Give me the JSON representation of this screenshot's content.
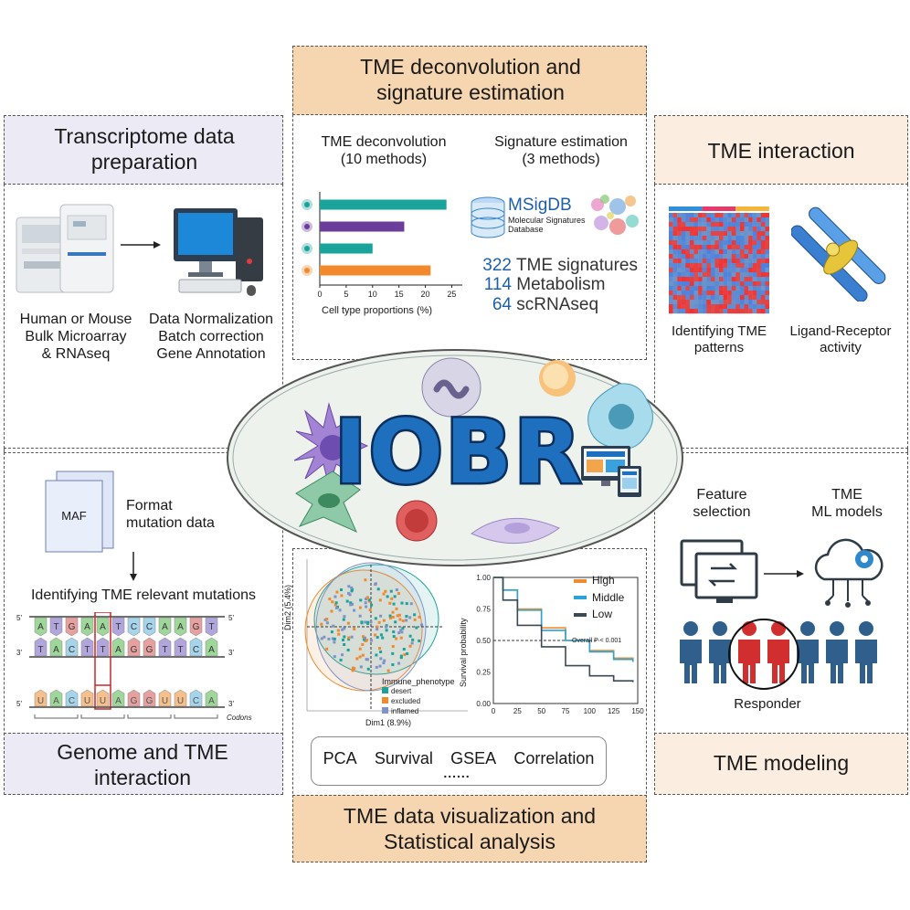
{
  "panels": {
    "transcriptome": {
      "title": "Transcriptome data preparation",
      "left_caption": [
        "Human or Mouse",
        "Bulk Microarray",
        "& RNAseq"
      ],
      "right_caption": [
        "Data Normalization",
        "Batch correction",
        "Gene Annotation"
      ]
    },
    "genome": {
      "title": "Genome and TME interaction",
      "maf_label": "MAF",
      "format_caption": [
        "Format",
        "mutation data"
      ],
      "identify_caption": "Identifying TME relevant mutations",
      "dna_top": [
        "A",
        "T",
        "G",
        "A",
        "A",
        "T",
        "C",
        "C",
        "A",
        "A",
        "G",
        "T"
      ],
      "dna_bottom": [
        "T",
        "A",
        "C",
        "T",
        "T",
        "A",
        "G",
        "G",
        "T",
        "T",
        "C",
        "A"
      ],
      "rna": [
        "U",
        "A",
        "C",
        "U",
        "U",
        "A",
        "G",
        "G",
        "U",
        "U",
        "C",
        "A"
      ],
      "codons_label": "Codons",
      "end_5": "5'",
      "end_3": "3'"
    },
    "deconvolution": {
      "title": "TME deconvolution and signature estimation",
      "left_header": [
        "TME deconvolution",
        "(10 methods)"
      ],
      "right_header": [
        "Signature estimation",
        "(3 methods)"
      ],
      "msigdb_title": "MSigDB",
      "msigdb_sub": [
        "Molecular Signatures",
        "Database"
      ],
      "signatures": [
        {
          "count": "322",
          "label": "TME signatures"
        },
        {
          "count": "114",
          "label": "Metabolism"
        },
        {
          "count": "64",
          "label": "scRNAseq"
        }
      ]
    },
    "interaction": {
      "title": "TME interaction",
      "left_caption": [
        "Identifying TME",
        "patterns"
      ],
      "right_caption": [
        "Ligand-Receptor",
        "activity"
      ]
    },
    "modeling": {
      "title": "TME modeling",
      "feature_caption": [
        "Feature",
        "selection"
      ],
      "ml_caption": [
        "TME",
        "ML models"
      ],
      "responder_label": "Responder"
    },
    "visualization": {
      "title": "TME data visualization and Statistical analysis",
      "methods": [
        "PCA",
        "Survival",
        "GSEA",
        "Correlation"
      ],
      "ellipsis": "......"
    }
  },
  "center": {
    "logo_text": "IOBR"
  },
  "colors": {
    "teal": "#1aa39a",
    "purple": "#6a3d9a",
    "orange": "#f08a2c",
    "blue_text": "#1f5fa8",
    "logo_blue": "#1e6fbe"
  },
  "chart_data": [
    {
      "type": "bar",
      "orientation": "horizontal",
      "categories": [
        "",
        "",
        "",
        ""
      ],
      "values": [
        24,
        16,
        10,
        21
      ],
      "bar_colors": [
        "#1aa39a",
        "#6a3d9a",
        "#1aa39a",
        "#f08a2c"
      ],
      "xlabel": "Cell type proportions (%)",
      "xticks": [
        "0",
        "5",
        "10",
        "15",
        "20",
        "25"
      ],
      "xlim": [
        0,
        27
      ]
    },
    {
      "type": "scatter",
      "xlabel": "Dim1 (8.9%)",
      "ylabel": "Dim2 (5.4%)",
      "legend_title": "Immune_phenotype",
      "series": [
        {
          "name": "desert",
          "color": "#1aa39a"
        },
        {
          "name": "excluded",
          "color": "#f08a2c"
        },
        {
          "name": "inflamed",
          "color": "#7f93c8"
        }
      ]
    },
    {
      "type": "line",
      "ylabel": "Survival probability",
      "xticks": [
        "0",
        "25",
        "50",
        "75",
        "100",
        "125",
        "150"
      ],
      "yticks": [
        "0.00",
        "0.25",
        "0.50",
        "0.75",
        "1.00"
      ],
      "xlim": [
        0,
        150
      ],
      "ylim": [
        0,
        1
      ],
      "annotation": "Overall P < 0.001",
      "series": [
        {
          "name": "High",
          "color": "#f08a2c",
          "x": [
            0,
            10,
            25,
            50,
            75,
            100,
            125,
            145
          ],
          "y": [
            1.0,
            0.9,
            0.75,
            0.6,
            0.5,
            0.42,
            0.36,
            0.34
          ]
        },
        {
          "name": "Middle",
          "color": "#29a3d8",
          "x": [
            0,
            10,
            25,
            50,
            75,
            100,
            125,
            145
          ],
          "y": [
            1.0,
            0.9,
            0.74,
            0.58,
            0.5,
            0.41,
            0.35,
            0.33
          ]
        },
        {
          "name": "Low",
          "color": "#3a4a55",
          "x": [
            0,
            10,
            25,
            50,
            75,
            100,
            125,
            145
          ],
          "y": [
            1.0,
            0.82,
            0.62,
            0.45,
            0.3,
            0.22,
            0.18,
            0.17
          ]
        }
      ]
    }
  ]
}
